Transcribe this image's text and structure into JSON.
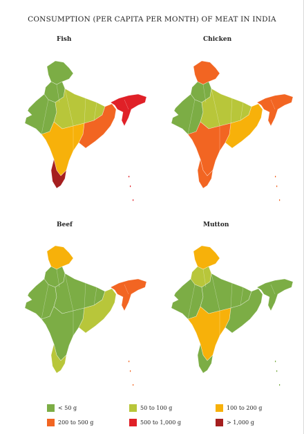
{
  "title": "CONSUMPTION (PER CAPITA PER MONTH) OF MEAT IN INDIA",
  "colors": {
    "lt50": "#7cad45",
    "c50_100": "#b8c63a",
    "c100_200": "#f7b10a",
    "c200_500": "#f26522",
    "c500_1000": "#e02027",
    "gt1000": "#a51f1f"
  },
  "legend": [
    {
      "label": "< 50 g",
      "color": "#7cad45"
    },
    {
      "label": "50 to 100 g",
      "color": "#b8c63a"
    },
    {
      "label": "100 to 200 g",
      "color": "#f7b10a"
    },
    {
      "label": "200 to 500 g",
      "color": "#f26522"
    },
    {
      "label": "500 to 1,000 g",
      "color": "#e02027"
    },
    {
      "label": "> 1,000 g",
      "color": "#a51f1f"
    }
  ],
  "panels": [
    {
      "name": "Fish",
      "regions": {
        "north": "lt50",
        "northwest": "lt50",
        "west": "lt50",
        "central": "c50_100",
        "east": "c200_500",
        "northeast": "c500_1000",
        "south": "c100_200",
        "southtip": "gt1000"
      }
    },
    {
      "name": "Chicken",
      "regions": {
        "north": "c200_500",
        "northwest": "lt50",
        "west": "lt50",
        "central": "c50_100",
        "east": "c100_200",
        "northeast": "c200_500",
        "south": "c200_500",
        "southtip": "c200_500"
      }
    },
    {
      "name": "Beef",
      "regions": {
        "north": "c100_200",
        "northwest": "lt50",
        "west": "lt50",
        "central": "lt50",
        "east": "c50_100",
        "northeast": "c200_500",
        "south": "lt50",
        "southtip": "c50_100"
      }
    },
    {
      "name": "Mutton",
      "regions": {
        "north": "c100_200",
        "northwest": "c50_100",
        "west": "lt50",
        "central": "lt50",
        "east": "lt50",
        "northeast": "lt50",
        "south": "c100_200",
        "southtip": "lt50"
      }
    }
  ]
}
